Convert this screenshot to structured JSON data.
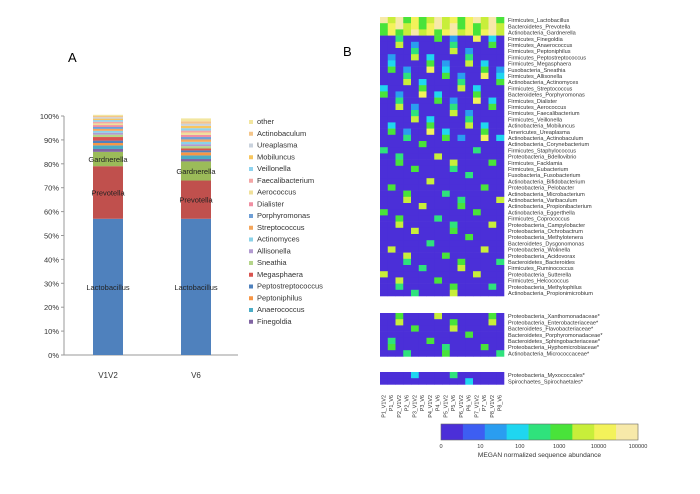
{
  "panel_a": {
    "label": "A",
    "y_ticks": [
      "0%",
      "10%",
      "20%",
      "30%",
      "40%",
      "50%",
      "60%",
      "70%",
      "80%",
      "90%",
      "100%"
    ],
    "legend": [
      {
        "name": "other",
        "color": "#f2e6a0"
      },
      {
        "name": "Actinobaculum",
        "color": "#f4c58a"
      },
      {
        "name": "Ureaplasma",
        "color": "#c9d2dd"
      },
      {
        "name": "Mobiluncus",
        "color": "#f7c65f"
      },
      {
        "name": "Veillonella",
        "color": "#8fd3ee"
      },
      {
        "name": "Faecalibacterium",
        "color": "#f3a6a6"
      },
      {
        "name": "Aerococcus",
        "color": "#f0e09a"
      },
      {
        "name": "Dialister",
        "color": "#f08fa2"
      },
      {
        "name": "Porphyromonas",
        "color": "#6f9fd6"
      },
      {
        "name": "Streptococcus",
        "color": "#f4a65c"
      },
      {
        "name": "Actinomyces",
        "color": "#8ad2e8"
      },
      {
        "name": "Allisonella",
        "color": "#b29ad0"
      },
      {
        "name": "Sneathia",
        "color": "#b5d58a"
      },
      {
        "name": "Megasphaera",
        "color": "#d9534f"
      },
      {
        "name": "Peptostreptococcus",
        "color": "#4f81bd"
      },
      {
        "name": "Peptoniphilus",
        "color": "#f79646"
      },
      {
        "name": "Anaerococcus",
        "color": "#4bacc6"
      },
      {
        "name": "Finegoldia",
        "color": "#8064a2"
      }
    ]
  },
  "chart_data": [
    {
      "type": "bar",
      "stacked": true,
      "categories": [
        "V1V2",
        "V6"
      ],
      "ylim": [
        0,
        100
      ],
      "series": [
        {
          "name": "Lactobacillus",
          "color": "#4f81bd",
          "values": [
            57,
            57
          ]
        },
        {
          "name": "Prevotella",
          "color": "#c0504d",
          "values": [
            22,
            16
          ]
        },
        {
          "name": "Gardnerella",
          "color": "#9bbb59",
          "values": [
            6,
            8
          ]
        },
        {
          "name": "Finegoldia",
          "color": "#8064a2",
          "values": [
            1.2,
            1
          ]
        },
        {
          "name": "Anaerococcus",
          "color": "#4bacc6",
          "values": [
            1.5,
            1.5
          ]
        },
        {
          "name": "Peptoniphilus",
          "color": "#f79646",
          "values": [
            1,
            1.3
          ]
        },
        {
          "name": "Peptostreptococcus",
          "color": "#4f81bd",
          "values": [
            1,
            0.8
          ]
        },
        {
          "name": "Megasphaera",
          "color": "#d9534f",
          "values": [
            1.5,
            0.8
          ]
        },
        {
          "name": "Sneathia",
          "color": "#b5d58a",
          "values": [
            1,
            1
          ]
        },
        {
          "name": "Allisonella",
          "color": "#b29ad0",
          "values": [
            0.8,
            0.8
          ]
        },
        {
          "name": "Actinomyces",
          "color": "#8ad2e8",
          "values": [
            0.8,
            1
          ]
        },
        {
          "name": "Streptococcus",
          "color": "#f4a65c",
          "values": [
            0.8,
            1
          ]
        },
        {
          "name": "Porphyromonas",
          "color": "#6f9fd6",
          "values": [
            0.8,
            1
          ]
        },
        {
          "name": "Dialister",
          "color": "#f08fa2",
          "values": [
            0.8,
            0.9
          ]
        },
        {
          "name": "Aerococcus",
          "color": "#f0e09a",
          "values": [
            0.7,
            1
          ]
        },
        {
          "name": "Faecalibacterium",
          "color": "#f3a6a6",
          "values": [
            0.7,
            0.8
          ]
        },
        {
          "name": "Veillonella",
          "color": "#8fd3ee",
          "values": [
            0.7,
            1
          ]
        },
        {
          "name": "Mobiluncus",
          "color": "#f7c65f",
          "values": [
            0.6,
            1
          ]
        },
        {
          "name": "Ureaplasma",
          "color": "#c9d2dd",
          "values": [
            0.6,
            0.9
          ]
        },
        {
          "name": "Actinobaculum",
          "color": "#f4c58a",
          "values": [
            0.5,
            1
          ]
        },
        {
          "name": "other",
          "color": "#f2e6a0",
          "values": [
            0.5,
            1.2
          ]
        }
      ],
      "bar_labels": [
        {
          "text": "Lactobacillus",
          "series": "Lactobacillus"
        },
        {
          "text": "Prevotella",
          "series": "Prevotella"
        },
        {
          "text": "Gardnerella",
          "series": "Gardnerella"
        }
      ]
    },
    {
      "type": "heatmap",
      "panel_label": "B",
      "colorbar_title": "MEGAN normalized sequence abundance",
      "colorbar_ticks": [
        "0",
        "10",
        "100",
        "1000",
        "10000",
        "100000"
      ],
      "columns": [
        "P1_V1V2",
        "P1_V6",
        "P2_V1V2",
        "P2_V6",
        "P3_V1V2",
        "P3_V6",
        "P4_V1V2",
        "P4_V6",
        "P5_V1V2",
        "P5_V6",
        "P6_V1V2",
        "P6_V6",
        "P7_V1V2",
        "P7_V6",
        "P8_V1V2",
        "P8_V6"
      ],
      "blocks": [
        {
          "rows": [
            "Firmicutes_Lactobacillus",
            "Bacteroidetes_Prevotella",
            "Actinobacteria_Gardnerella",
            "Firmicutes_Finegoldia",
            "Firmicutes_Anaerococcus",
            "Firmicutes_Peptoniphilus",
            "Firmicutes_Peptostreptococcus",
            "Firmicutes_Megasphaera",
            "Fusobacteria_Sneathia",
            "Firmicutes_Allisonella",
            "Actinobacteria_Actinomyces",
            "Firmicutes_Streptococcus",
            "Bacteroidetes_Porphyromonas",
            "Firmicutes_Dialister",
            "Firmicutes_Aerococcus",
            "Firmicutes_Faecalibacterium",
            "Firmicutes_Veillonella",
            "Actinobacteria_Mobiluncus",
            "Tenericutes_Ureaplasma",
            "Actinobacteria_Actinobaculum",
            "Actinobacteria_Corynebacterium",
            "Firmicutes_Staphylococcus",
            "Proteobacteria_Bdellovibrio",
            "Firmicutes_Facklamia",
            "Firmicutes_Eubacterium",
            "Fusobacteria_Fusobacterium",
            "Actinobacteria_Bifidobacterium",
            "Proteobacteria_Pelobacter",
            "Actinobacteria_Microbacterium",
            "Actinobacteria_Varibaculum",
            "Actinobacteria_Propionibacterium",
            "Actinobacteria_Eggerthella",
            "Firmicutes_Coprococcus",
            "Proteobacteria_Campylobacter",
            "Proteobacteria_Ochrobactrum",
            "Proteobacteria_Methylotenera",
            "Bacteroidetes_Dysgonomonas",
            "Proteobacteria_Wolinella",
            "Proteobacteria_Acidovorax",
            "Bacteroidetes_Bacteroides",
            "Firmicutes_Ruminococcus",
            "Proteobacteria_Sutterella",
            "Firmicutes_Helcococcus",
            "Proteobacteria_Methylophilus",
            "Actinobacteria_Propionimicrobium"
          ]
        },
        {
          "rows": [
            "Proteobacteria_Xanthomonadaceae*",
            "Proteobacteria_Enterobacteriaceae*",
            "Bacteroidetes_Flavobacteriaceae*",
            "Bacteroidetes_Porphyromonadaceae*",
            "Bacteroidetes_Sphingobacteriaceae*",
            "Proteobacteria_Hyphomicrobiaceae*",
            "Actinobacteria_Micrococcaceae*"
          ]
        },
        {
          "rows": [
            "Proteobacteria_Myxococcales*",
            "Spirochaetes_Spirochaetales*"
          ]
        }
      ]
    }
  ]
}
